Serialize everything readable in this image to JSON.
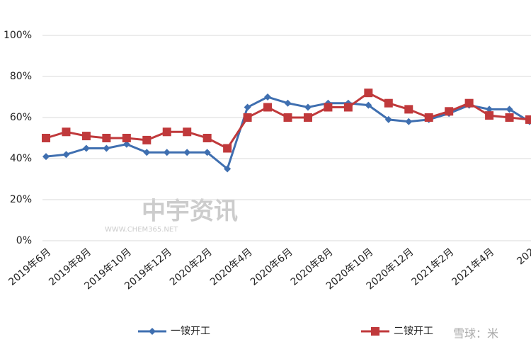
{
  "chart_data": {
    "type": "line",
    "categories": [
      "2019年6月",
      null,
      "2019年8月",
      null,
      "2019年10月",
      null,
      "2019年12月",
      null,
      "2020年2月",
      null,
      "2020年4月",
      null,
      "2020年6月",
      null,
      "2020年8月",
      null,
      "2020年10月",
      null,
      "2020年12月",
      null,
      "2021年2月",
      null,
      "2021年4月",
      null,
      "202"
    ],
    "series": [
      {
        "name": "一铵开工",
        "color": "#3f6fb0",
        "marker": "diamond",
        "values": [
          41,
          42,
          45,
          45,
          47,
          43,
          43,
          43,
          43,
          35,
          65,
          70,
          67,
          65,
          67,
          67,
          66,
          59,
          58,
          59,
          62,
          66,
          64,
          64,
          58
        ]
      },
      {
        "name": "二铵开工",
        "color": "#c0393b",
        "marker": "square",
        "values": [
          50,
          53,
          51,
          50,
          50,
          49,
          53,
          53,
          50,
          45,
          60,
          65,
          60,
          60,
          65,
          65,
          72,
          67,
          64,
          60,
          63,
          67,
          61,
          60,
          59
        ]
      }
    ],
    "ylim": [
      0,
      100
    ],
    "yticks": [
      {
        "value": 0,
        "label": "0%"
      },
      {
        "value": 20,
        "label": "20%"
      },
      {
        "value": 40,
        "label": "40%"
      },
      {
        "value": 60,
        "label": "60%"
      },
      {
        "value": 80,
        "label": "80%"
      },
      {
        "value": 100,
        "label": "100%"
      }
    ],
    "grid": true,
    "legend": "bottom",
    "watermarks": [
      "中宇资讯",
      "WWW.CHEM365.NET",
      "雪球：米"
    ]
  }
}
